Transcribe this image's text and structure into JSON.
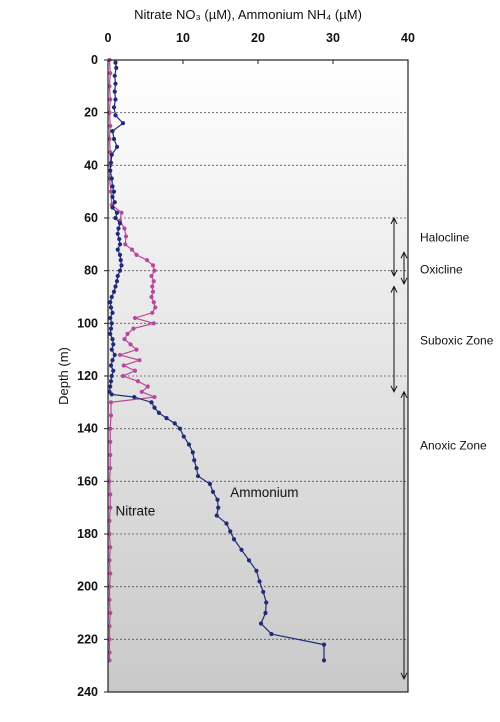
{
  "chart_data": {
    "type": "line",
    "title": "Nitrate NO₃ (µM), Ammonium NH₄ (µM)",
    "xlabel": "Nitrate NO₃ (µM), Ammonium NH₄ (µM)",
    "ylabel": "Depth (m)",
    "xlim": [
      0,
      40
    ],
    "ylim": [
      0,
      240
    ],
    "y_inverted": true,
    "x_axis_position": "top",
    "x_ticks": [
      0,
      10,
      20,
      30,
      40
    ],
    "y_ticks": [
      0,
      20,
      40,
      60,
      80,
      100,
      120,
      140,
      160,
      180,
      200,
      220,
      240
    ],
    "grid": "dashed horizontal",
    "colors": {
      "ammonium": "#1f2b78",
      "nitrate": "#b8489b",
      "zone_marker": "#111111"
    },
    "series": [
      {
        "name": "Ammonium",
        "label_position": [
          16.3,
          166
        ],
        "depth": [
          1,
          3,
          6,
          9,
          12,
          15,
          18,
          21,
          24,
          27,
          30,
          33,
          36,
          39,
          42,
          45,
          48,
          50,
          52,
          54,
          56,
          58,
          60,
          62,
          64,
          66,
          68,
          70,
          72,
          74,
          76,
          78,
          80,
          82,
          84,
          86,
          88,
          90,
          92,
          94,
          96,
          98,
          100,
          102,
          104,
          106,
          108,
          110,
          112,
          114,
          116,
          118,
          120,
          122,
          124,
          126,
          127,
          128,
          130,
          132,
          134,
          136,
          138,
          140,
          143,
          146,
          149,
          152,
          155,
          158,
          161,
          164,
          167,
          170,
          173,
          176,
          179,
          182,
          186,
          190,
          194,
          198,
          202,
          206,
          210,
          214,
          218,
          222,
          228
        ],
        "values": [
          1.0,
          1.1,
          0.9,
          1.0,
          0.9,
          1.0,
          0.8,
          1.0,
          2.0,
          0.6,
          0.8,
          1.2,
          0.5,
          0.4,
          0.3,
          0.5,
          0.6,
          0.8,
          0.6,
          0.9,
          0.6,
          1.2,
          1.0,
          1.6,
          1.4,
          1.3,
          1.5,
          1.6,
          1.3,
          1.6,
          1.7,
          1.8,
          1.6,
          1.3,
          1.2,
          1.0,
          0.8,
          0.5,
          0.3,
          0.4,
          0.6,
          0.3,
          0.5,
          0.4,
          0.3,
          0.6,
          0.7,
          0.5,
          0.9,
          0.6,
          0.4,
          0.7,
          0.5,
          0.4,
          0.3,
          0.2,
          0.5,
          3.5,
          5.8,
          6.2,
          6.8,
          7.8,
          8.9,
          9.6,
          10.1,
          10.8,
          11.3,
          11.5,
          11.8,
          12.0,
          13.6,
          14.0,
          14.6,
          14.7,
          14.5,
          15.8,
          16.3,
          16.8,
          17.8,
          18.8,
          19.8,
          20.2,
          20.7,
          21.1,
          21.0,
          20.4,
          21.8,
          28.8,
          28.8
        ]
      },
      {
        "name": "Nitrate",
        "label_position": [
          1.0,
          173
        ],
        "depth": [
          0,
          5,
          10,
          15,
          20,
          25,
          30,
          35,
          40,
          45,
          50,
          55,
          58,
          61,
          64,
          67,
          70,
          72,
          74,
          76,
          78,
          80,
          82,
          84,
          86,
          88,
          90,
          92,
          94,
          96,
          98,
          100,
          102,
          104,
          106,
          108,
          110,
          112,
          114,
          116,
          118,
          120,
          122,
          124,
          126,
          128,
          130,
          135,
          140,
          145,
          150,
          155,
          160,
          165,
          170,
          175,
          180,
          185,
          190,
          195,
          200,
          205,
          210,
          215,
          220,
          225,
          228
        ],
        "values": [
          0.2,
          0.3,
          0.2,
          0.3,
          0.2,
          0.3,
          0.2,
          0.3,
          0.3,
          0.2,
          0.4,
          0.5,
          1.8,
          1.6,
          2.2,
          2.4,
          2.3,
          3.2,
          3.8,
          5.2,
          6.0,
          6.2,
          5.8,
          6.1,
          5.9,
          6.0,
          5.8,
          6.1,
          6.3,
          5.9,
          3.6,
          6.1,
          3.4,
          2.6,
          2.2,
          3.0,
          3.8,
          1.6,
          4.2,
          2.1,
          3.6,
          2.0,
          4.0,
          5.3,
          4.5,
          6.2,
          0.4,
          0.4,
          0.3,
          0.3,
          0.3,
          0.3,
          0.2,
          0.3,
          0.3,
          0.2,
          0.2,
          0.3,
          0.2,
          0.3,
          0.2,
          0.2,
          0.3,
          0.2,
          0.2,
          0.2,
          0.2
        ]
      }
    ],
    "annotations": {
      "series_labels": [
        "Ammonium",
        "Nitrate"
      ],
      "zones": [
        {
          "label": "Halocline",
          "from": 60,
          "to": 82
        },
        {
          "label": "Oxicline",
          "from": 73,
          "to": 85
        },
        {
          "label": "Suboxic Zone",
          "from": 86,
          "to": 126
        },
        {
          "label": "Anoxic Zone",
          "from": 126,
          "to": 235
        }
      ]
    }
  }
}
